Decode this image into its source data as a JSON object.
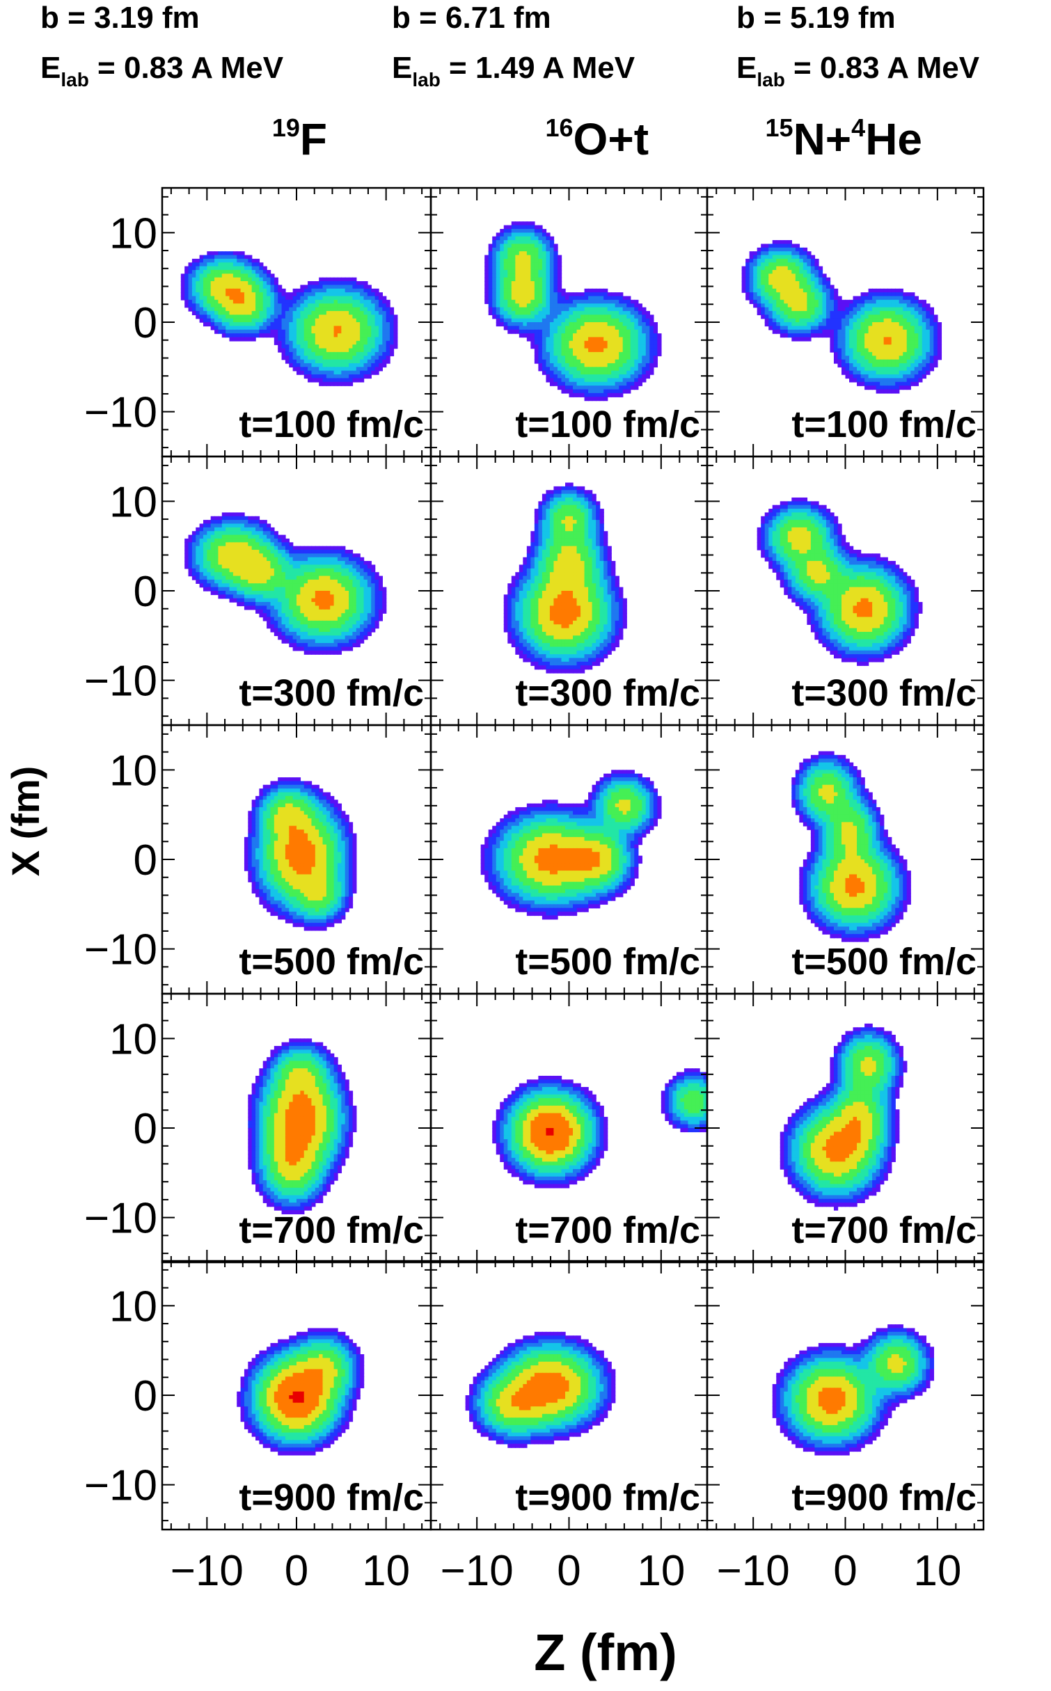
{
  "chart_data": {
    "type": "heatmap",
    "title": "",
    "xlabel": "Z (fm)",
    "ylabel": "X (fm)",
    "xlim": [
      -15,
      15
    ],
    "ylim": [
      -15,
      15
    ],
    "x_ticks": [
      -10,
      0,
      10
    ],
    "y_ticks": [
      10,
      0,
      -10
    ],
    "x_tick_labels": [
      "−10",
      "0",
      "10"
    ],
    "y_tick_labels": [
      "10",
      "0",
      "−10"
    ],
    "colorscale": [
      "#5b10f5",
      "#2233ff",
      "#1f78f0",
      "#14c5e8",
      "#22e6a5",
      "#45ef55",
      "#e6e020",
      "#ff7a00",
      "#e80000"
    ],
    "columns": [
      {
        "b_label": "b =  3.19 fm",
        "elab_prefix": "E",
        "elab_sub": "lab",
        "elab_value": " = 0.83 A MeV",
        "system": [
          {
            "text": "19",
            "sup": true
          },
          {
            "text": "F",
            "sup": false
          }
        ],
        "panels": [
          {
            "time": "t=100 fm/c",
            "blobs": [
              {
                "z": -8,
                "x": 4,
                "amp": 0.45,
                "sz": 2.0,
                "sx": 1.6
              },
              {
                "z": -6,
                "x": 2,
                "amp": 0.45,
                "sz": 1.8,
                "sx": 1.6
              },
              {
                "z": 4.5,
                "x": -1,
                "amp": 0.6,
                "sz": 2.6,
                "sx": 2.3
              }
            ]
          },
          {
            "time": "t=300 fm/c",
            "blobs": [
              {
                "z": -7,
                "x": 4,
                "amp": 0.5,
                "sz": 2.2,
                "sx": 1.8
              },
              {
                "z": -4,
                "x": 2,
                "amp": 0.4,
                "sz": 1.8,
                "sx": 1.6
              },
              {
                "z": 3,
                "x": -1,
                "amp": 0.65,
                "sz": 2.6,
                "sx": 2.3
              }
            ]
          },
          {
            "time": "t=500 fm/c",
            "blobs": [
              {
                "z": 0.5,
                "x": 0.5,
                "amp": 0.75,
                "sz": 2.3,
                "sx": 2.8
              },
              {
                "z": -1,
                "x": 5,
                "amp": 0.35,
                "sz": 1.6,
                "sx": 1.6
              },
              {
                "z": 2.5,
                "x": -4,
                "amp": 0.3,
                "sz": 1.5,
                "sx": 1.5
              }
            ]
          },
          {
            "time": "t=700 fm/c",
            "blobs": [
              {
                "z": 0.5,
                "x": 1,
                "amp": 0.8,
                "sz": 2.2,
                "sx": 2.8
              },
              {
                "z": -0.5,
                "x": -4,
                "amp": 0.45,
                "sz": 1.8,
                "sx": 2.2
              },
              {
                "z": 0.5,
                "x": 6,
                "amp": 0.3,
                "sz": 1.6,
                "sx": 1.6
              }
            ]
          },
          {
            "time": "t=900 fm/c",
            "blobs": [
              {
                "z": 0,
                "x": -0.3,
                "amp": 1.0,
                "sz": 2.3,
                "sx": 2.3
              },
              {
                "z": 3,
                "x": 3,
                "amp": 0.4,
                "sz": 1.8,
                "sx": 1.8
              }
            ]
          }
        ]
      },
      {
        "b_label": "b =  6.71 fm",
        "elab_prefix": "E",
        "elab_sub": "lab",
        "elab_value": " = 1.49 A MeV",
        "system": [
          {
            "text": "16",
            "sup": true
          },
          {
            "text": "O+t",
            "sup": false
          }
        ],
        "panels": [
          {
            "time": "t=100 fm/c",
            "blobs": [
              {
                "z": -5,
                "x": 7,
                "amp": 0.4,
                "sz": 1.6,
                "sx": 1.7
              },
              {
                "z": -5,
                "x": 3,
                "amp": 0.45,
                "sz": 1.6,
                "sx": 1.7
              },
              {
                "z": 3,
                "x": -2.5,
                "amp": 0.65,
                "sz": 2.6,
                "sx": 2.3
              }
            ]
          },
          {
            "time": "t=300 fm/c",
            "blobs": [
              {
                "z": 0,
                "x": 8,
                "amp": 0.35,
                "sz": 1.5,
                "sx": 1.6
              },
              {
                "z": 0,
                "x": 3,
                "amp": 0.45,
                "sz": 1.8,
                "sx": 2.2
              },
              {
                "z": -0.5,
                "x": -2.5,
                "amp": 0.7,
                "sz": 2.5,
                "sx": 2.5
              }
            ]
          },
          {
            "time": "t=500 fm/c",
            "blobs": [
              {
                "z": -2,
                "x": 0,
                "amp": 0.7,
                "sz": 2.8,
                "sx": 2.4
              },
              {
                "z": 3,
                "x": 0,
                "amp": 0.5,
                "sz": 1.8,
                "sx": 1.8
              },
              {
                "z": 6,
                "x": 6,
                "amp": 0.4,
                "sz": 1.6,
                "sx": 1.6
              }
            ]
          },
          {
            "time": "t=700 fm/c",
            "blobs": [
              {
                "z": -2,
                "x": -0.5,
                "amp": 1.0,
                "sz": 2.2,
                "sx": 2.2
              },
              {
                "z": 13.5,
                "x": 3,
                "amp": 0.3,
                "sz": 1.5,
                "sx": 1.5
              }
            ]
          },
          {
            "time": "t=900 fm/c",
            "blobs": [
              {
                "z": -2,
                "x": 1,
                "amp": 0.78,
                "sz": 2.6,
                "sx": 2.2
              },
              {
                "z": -6,
                "x": -1,
                "amp": 0.45,
                "sz": 2.0,
                "sx": 1.8
              }
            ]
          }
        ]
      },
      {
        "b_label": "b =  5.19 fm",
        "elab_prefix": "E",
        "elab_sub": "lab",
        "elab_value": " = 0.83 A MeV",
        "system": [
          {
            "text": "15",
            "sup": true
          },
          {
            "text": "N+",
            "sup": false
          },
          {
            "text": "4",
            "sup": true
          },
          {
            "text": "He",
            "sup": false
          }
        ],
        "panels": [
          {
            "time": "t=100 fm/c",
            "blobs": [
              {
                "z": -7,
                "x": 5,
                "amp": 0.45,
                "sz": 1.7,
                "sx": 1.6
              },
              {
                "z": -5,
                "x": 2,
                "amp": 0.4,
                "sz": 1.7,
                "sx": 1.6
              },
              {
                "z": 4.5,
                "x": -2,
                "amp": 0.6,
                "sz": 2.3,
                "sx": 2.2
              }
            ]
          },
          {
            "time": "t=300 fm/c",
            "blobs": [
              {
                "z": -5,
                "x": 6,
                "amp": 0.45,
                "sz": 1.8,
                "sx": 1.7
              },
              {
                "z": -3,
                "x": 2,
                "amp": 0.4,
                "sz": 1.7,
                "sx": 1.6
              },
              {
                "z": 2,
                "x": -2,
                "amp": 0.65,
                "sz": 2.3,
                "sx": 2.3
              }
            ]
          },
          {
            "time": "t=500 fm/c",
            "blobs": [
              {
                "z": -2,
                "x": 7.5,
                "amp": 0.4,
                "sz": 1.6,
                "sx": 1.8
              },
              {
                "z": 0.5,
                "x": 3,
                "amp": 0.4,
                "sz": 1.5,
                "sx": 2.0
              },
              {
                "z": 1,
                "x": -3,
                "amp": 0.65,
                "sz": 2.3,
                "sx": 2.3
              }
            ]
          },
          {
            "time": "t=700 fm/c",
            "blobs": [
              {
                "z": 2.5,
                "x": 7,
                "amp": 0.4,
                "sz": 1.6,
                "sx": 1.8
              },
              {
                "z": 1.5,
                "x": 1,
                "amp": 0.45,
                "sz": 1.6,
                "sx": 2.2
              },
              {
                "z": -1,
                "x": -2.5,
                "amp": 0.68,
                "sz": 2.3,
                "sx": 2.4
              }
            ]
          },
          {
            "time": "t=900 fm/c",
            "blobs": [
              {
                "z": -1.5,
                "x": -0.5,
                "amp": 0.72,
                "sz": 2.4,
                "sx": 2.3
              },
              {
                "z": 5.5,
                "x": 3.5,
                "amp": 0.42,
                "sz": 1.7,
                "sx": 1.7
              }
            ]
          }
        ]
      }
    ]
  }
}
